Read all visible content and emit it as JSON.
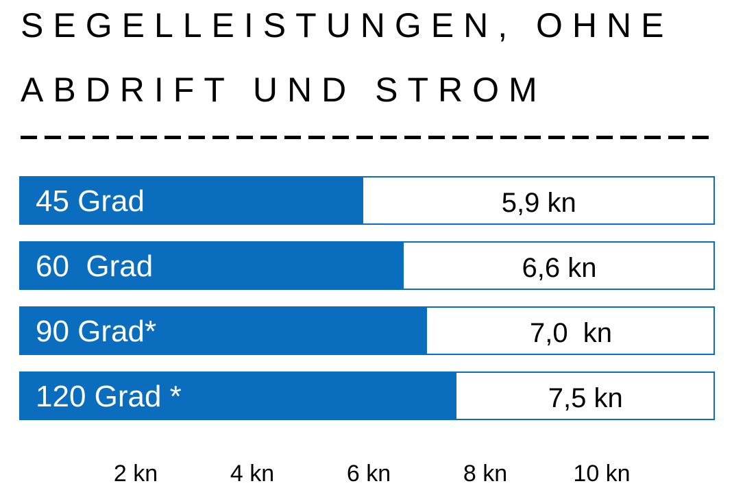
{
  "title": {
    "line1": "SEGELLEISTUNGEN, OHNE",
    "line2": "ABDRIFT UND STROM"
  },
  "colors": {
    "bar": "#0a6dbd",
    "frame": "#0a6dbd",
    "text_on_bar": "#ffffff",
    "text": "#000000"
  },
  "chart_data": {
    "type": "bar",
    "orientation": "horizontal",
    "title": "SEGELLEISTUNGEN, OHNE ABDRIFT UND STROM",
    "categories": [
      "45 Grad",
      "60  Grad",
      "90 Grad*",
      "120 Grad *"
    ],
    "values": [
      5.9,
      6.6,
      7.0,
      7.5
    ],
    "value_labels": [
      "5,9 kn",
      "6,6 kn",
      "7,0  kn",
      "7,5 kn"
    ],
    "unit": "kn",
    "xlim": [
      0,
      12
    ],
    "x_ticks": [
      2,
      4,
      6,
      8,
      10
    ],
    "x_tick_labels": [
      "2 kn",
      "4 kn",
      "6 kn",
      "8 kn",
      "10 kn"
    ],
    "grid": false,
    "legend": "none"
  }
}
